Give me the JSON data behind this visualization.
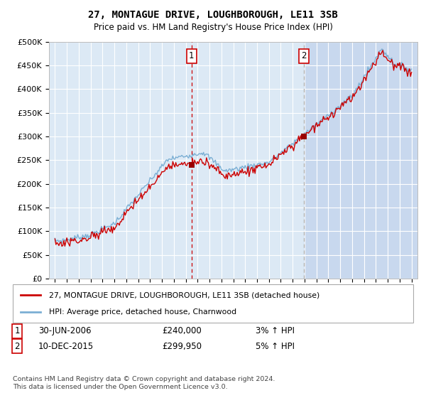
{
  "title": "27, MONTAGUE DRIVE, LOUGHBOROUGH, LE11 3SB",
  "subtitle": "Price paid vs. HM Land Registry's House Price Index (HPI)",
  "background_color": "#ffffff",
  "plot_bg_color": "#dce9f5",
  "plot_bg_color_right": "#c8d8ee",
  "grid_color": "#ffffff",
  "ylim": [
    0,
    500000
  ],
  "yticks": [
    0,
    50000,
    100000,
    150000,
    200000,
    250000,
    300000,
    350000,
    400000,
    450000,
    500000
  ],
  "legend_label_red": "27, MONTAGUE DRIVE, LOUGHBOROUGH, LE11 3SB (detached house)",
  "legend_label_blue": "HPI: Average price, detached house, Charnwood",
  "annotation1_label": "1",
  "annotation1_date": "30-JUN-2006",
  "annotation1_price": "£240,000",
  "annotation1_hpi": "3% ↑ HPI",
  "annotation1_year": 2006.5,
  "annotation1_value": 240000,
  "annotation2_label": "2",
  "annotation2_date": "10-DEC-2015",
  "annotation2_price": "£299,950",
  "annotation2_hpi": "5% ↑ HPI",
  "annotation2_year": 2015.917,
  "annotation2_value": 299950,
  "footer": "Contains HM Land Registry data © Crown copyright and database right 2024.\nThis data is licensed under the Open Government Licence v3.0.",
  "red_color": "#cc0000",
  "blue_color": "#7bafd4",
  "vline1_color": "#cc0000",
  "vline2_color": "#aaaaaa",
  "marker_color": "#990000",
  "xmin": 1995,
  "xmax": 2025
}
